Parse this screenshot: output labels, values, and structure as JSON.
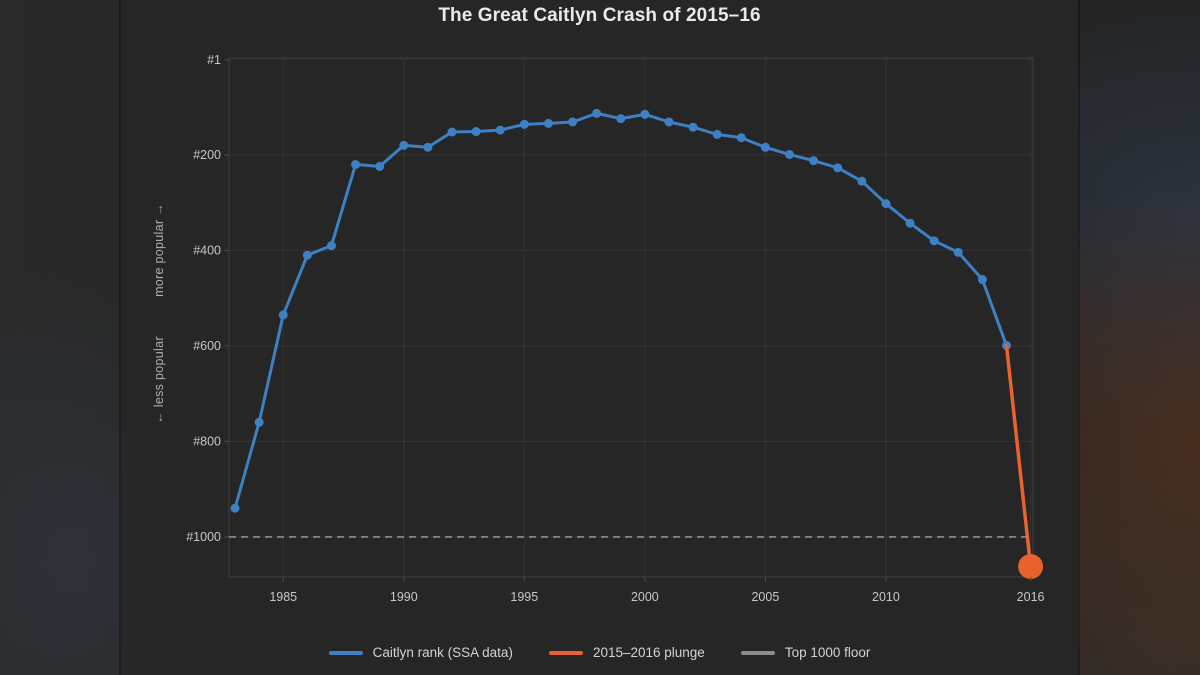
{
  "colors": {
    "panel_bg": "#262626",
    "grid": "#343432",
    "frame": "#3e3e3c",
    "tick_mark": "#504e4a",
    "tick_text": "#c9c7c3",
    "annotation_text": "#b0aeaa",
    "legend_text": "#d5d3cf",
    "title_text": "#eceae6",
    "blue": "#3d80c4",
    "orange": "#e8622d",
    "floor_gray": "#8f8d89"
  },
  "chart_data": {
    "type": "line",
    "title": "The Great Caitlyn Crash of 2015–16",
    "xlabel": "",
    "ylabel": "",
    "grid": true,
    "y_axis_inverted": true,
    "legend_position": "bottom-center",
    "xlim": [
      1982.75,
      2016.1
    ],
    "ylim_rank": [
      -3,
      1084
    ],
    "x_ticks": [
      {
        "year": 1985,
        "label": "1985"
      },
      {
        "year": 1990,
        "label": "1990"
      },
      {
        "year": 1995,
        "label": "1995"
      },
      {
        "year": 2000,
        "label": "2000"
      },
      {
        "year": 2005,
        "label": "2005"
      },
      {
        "year": 2010,
        "label": "2010"
      },
      {
        "year": 2016,
        "label": "2016"
      }
    ],
    "y_ticks": [
      {
        "rank": 1,
        "label": "#1"
      },
      {
        "rank": 200,
        "label": "#200"
      },
      {
        "rank": 400,
        "label": "#400"
      },
      {
        "rank": 600,
        "label": "#600"
      },
      {
        "rank": 800,
        "label": "#800"
      },
      {
        "rank": 1000,
        "label": "#1000"
      }
    ],
    "y_axis_annotations": {
      "upper": "more popular →",
      "lower": "← less popular"
    },
    "series": [
      {
        "name": "Caitlyn rank (SSA data)",
        "color": "#3d80c4",
        "line_width": 3,
        "dot_r": 4.5,
        "x": [
          1983,
          1984,
          1985,
          1986,
          1987,
          1988,
          1989,
          1990,
          1991,
          1992,
          1993,
          1994,
          1995,
          1996,
          1997,
          1998,
          1999,
          2000,
          2001,
          2002,
          2003,
          2004,
          2005,
          2006,
          2007,
          2008,
          2009,
          2010,
          2011,
          2012,
          2013,
          2014,
          2015
        ],
        "y": [
          940,
          760,
          535,
          410,
          390,
          220,
          224,
          180,
          184,
          152,
          151,
          148,
          136,
          134,
          131,
          113,
          124,
          115,
          131,
          142,
          157,
          164,
          184,
          199,
          212,
          227,
          255,
          302,
          343,
          380,
          404,
          461,
          599
        ]
      },
      {
        "name": "2015–2016 plunge",
        "color": "#e8622d",
        "line_width": 3.5,
        "dot_r": 0,
        "end_dot_r": 12.5,
        "x": [
          2015,
          2016
        ],
        "y": [
          599,
          1062
        ]
      },
      {
        "name": "Top 1000 floor",
        "color": "#8f8d89",
        "line_width": 1.6,
        "dashed": true,
        "y_const": 1000
      }
    ]
  }
}
